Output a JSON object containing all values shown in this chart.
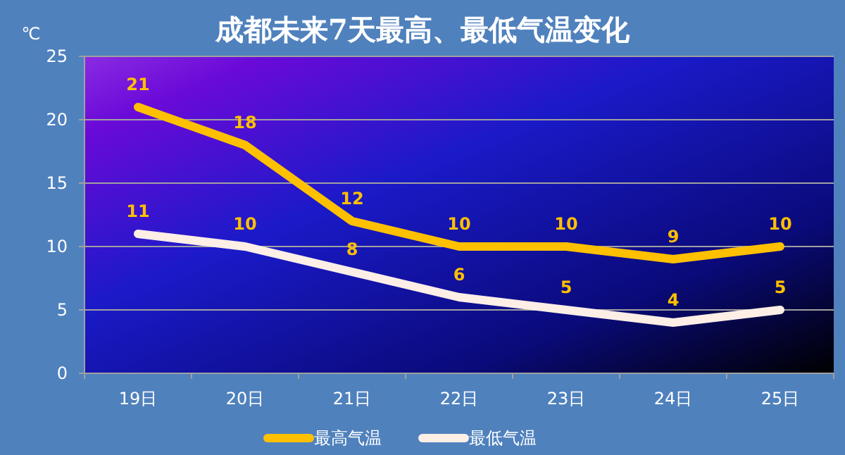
{
  "chart_data": {
    "type": "line",
    "title": "成都未来7天最高、最低气温变化",
    "ylabel": "℃",
    "categories": [
      "19日",
      "20日",
      "21日",
      "22日",
      "23日",
      "24日",
      "25日"
    ],
    "series": [
      {
        "name": "最高气温",
        "color": "#ffc000",
        "values": [
          21,
          18,
          12,
          10,
          10,
          9,
          10
        ]
      },
      {
        "name": "最低气温",
        "color": "#fdeee6",
        "values": [
          11,
          10,
          8,
          6,
          5,
          4,
          5
        ]
      }
    ],
    "ylim": [
      0,
      25
    ],
    "yticks": [
      0,
      5,
      10,
      15,
      20,
      25
    ],
    "grid": "y",
    "legend": "bottom",
    "data_labels": true,
    "marker": "none",
    "line_style": "solid"
  }
}
